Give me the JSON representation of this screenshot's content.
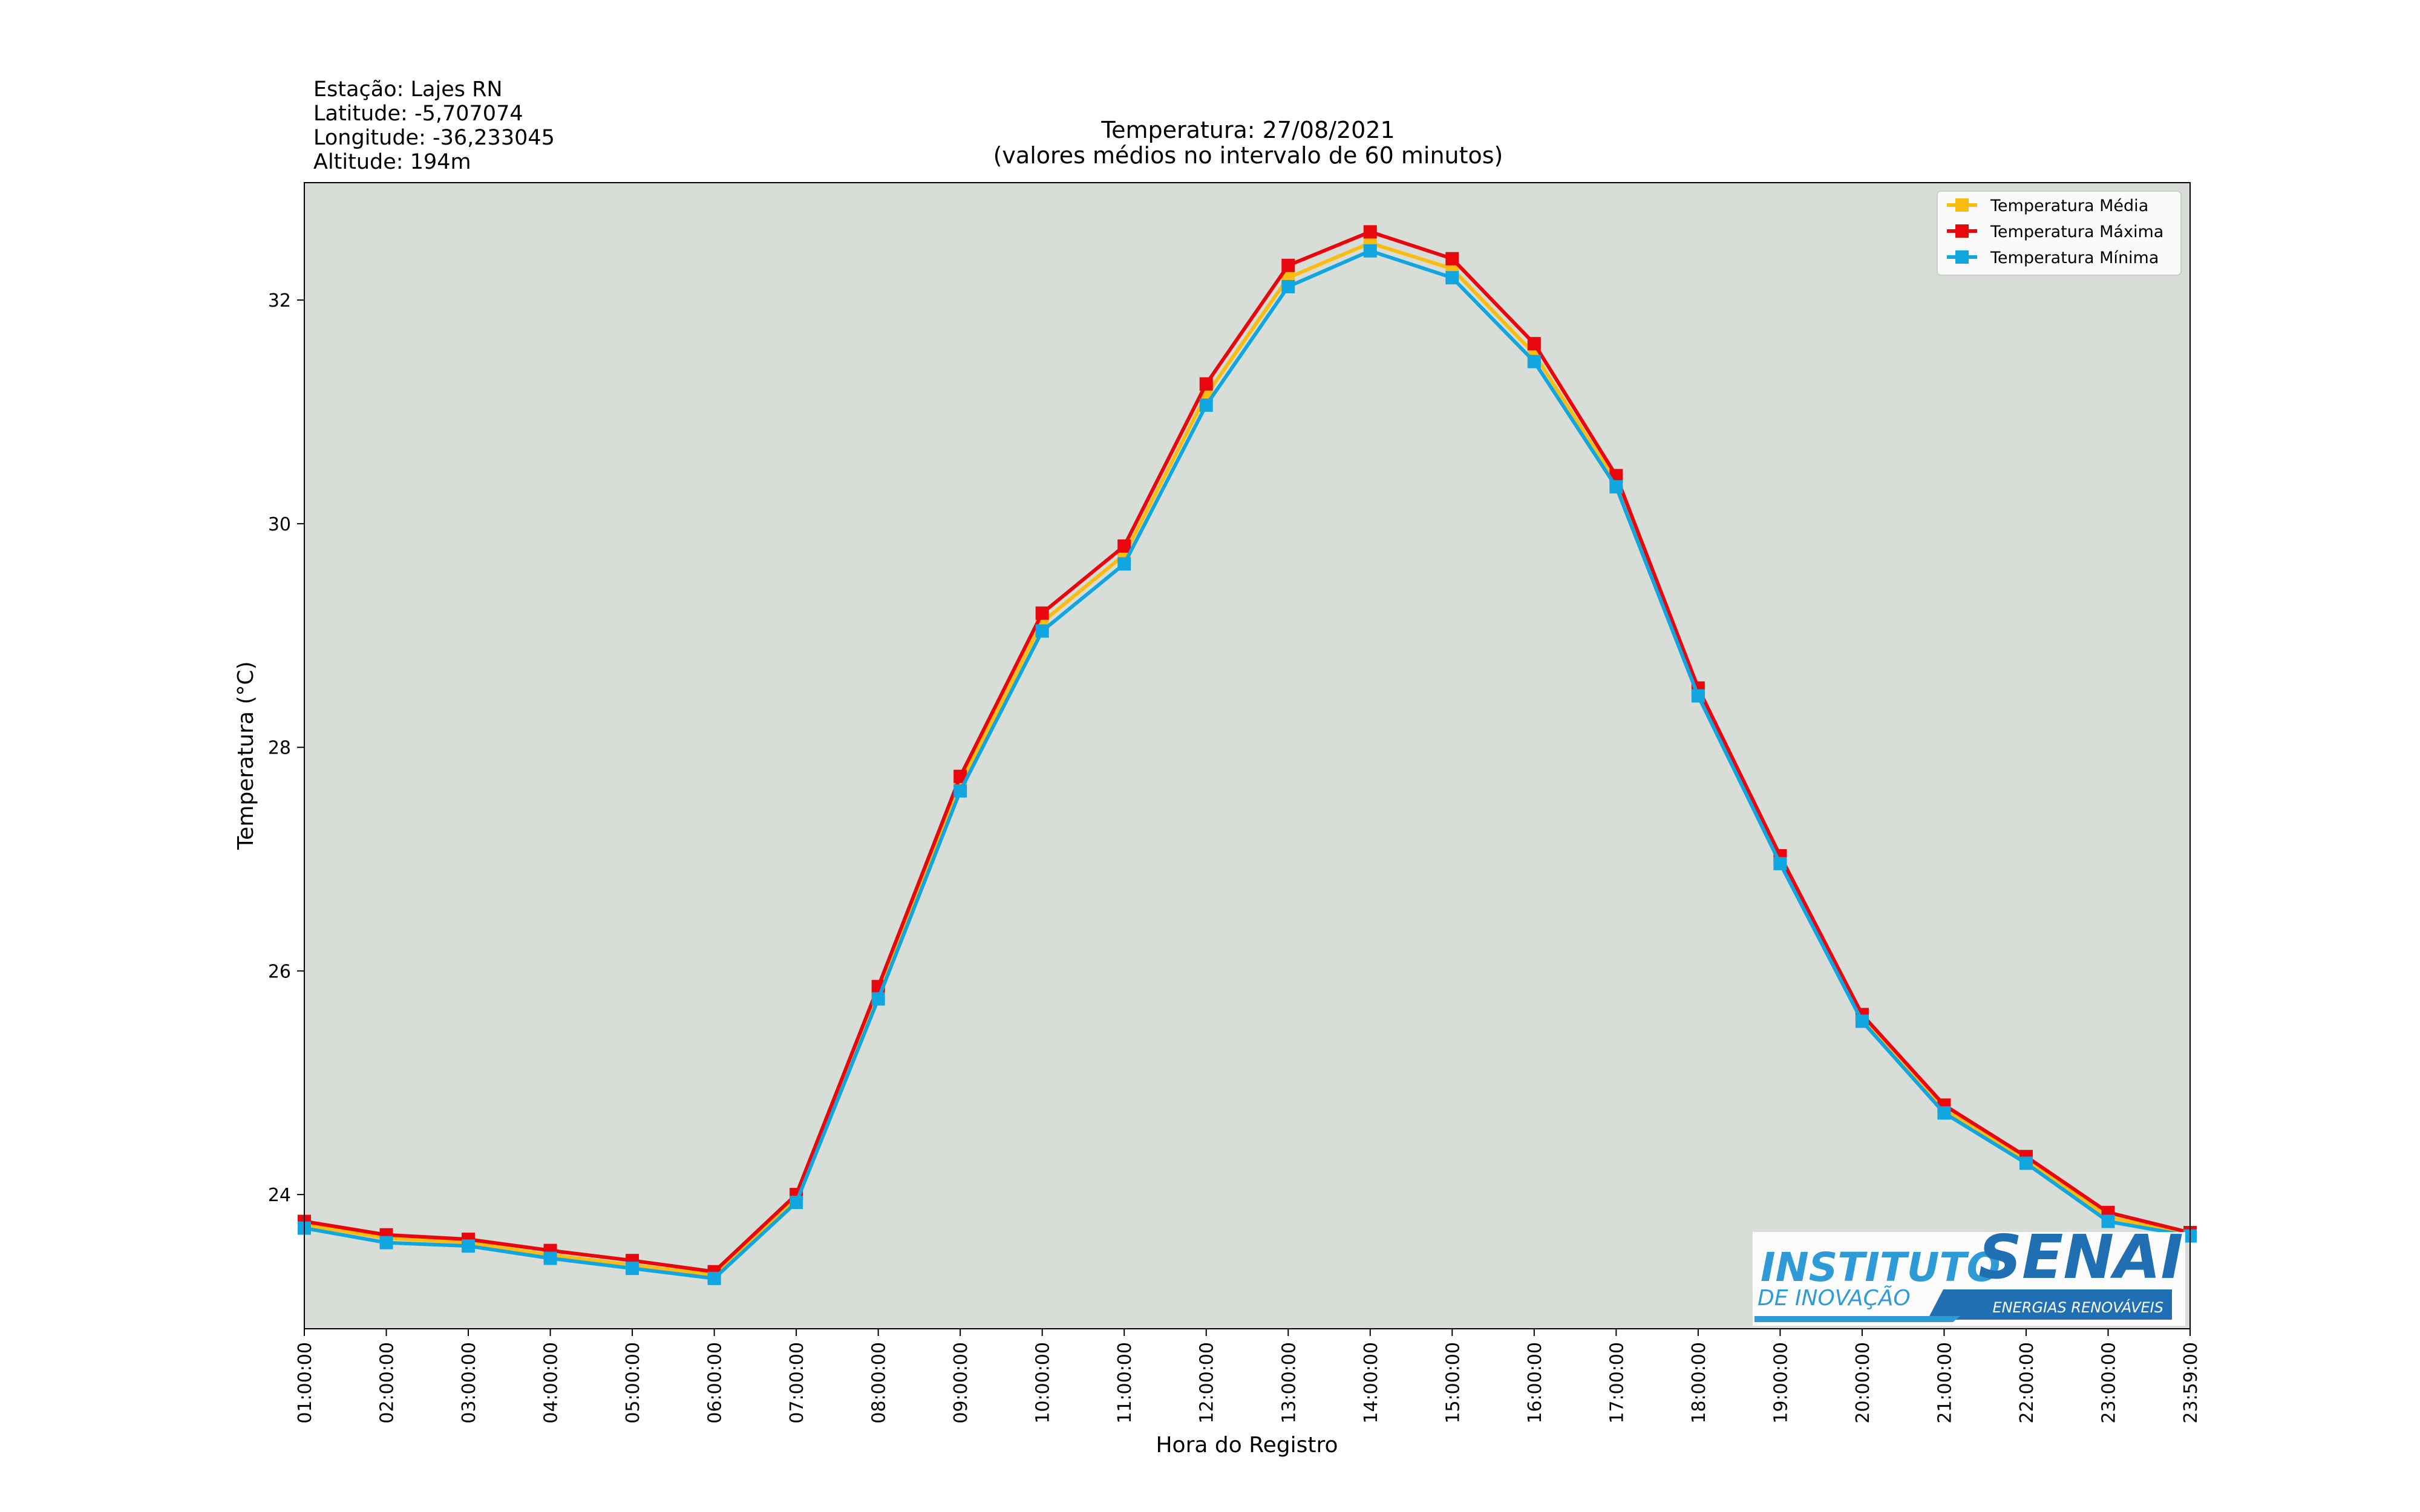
{
  "station": {
    "name": "Estação: Lajes RN",
    "latitude": "Latitude: -5,707074",
    "longitude": "Longitude: -36,233045",
    "altitude": "Altitude: 194m"
  },
  "logo": {
    "line1": "INSTITUTO",
    "line2": "SENAI",
    "line3": "DE INOVAÇÃO",
    "line4": "ENERGIAS RENOVÁVEIS"
  },
  "colors": {
    "background": "#d8ddd7",
    "media": "#fbbc12",
    "maxima": "#e8070d",
    "minima": "#12a6e0"
  },
  "chart_data": {
    "type": "line",
    "title": "Temperatura: 27/08/2021",
    "subtitle": "(valores médios no intervalo de 60 minutos)",
    "xlabel": "Hora do Registro",
    "ylabel": "Temperatura (°C)",
    "ylim": [
      22.8,
      33.05
    ],
    "yticks": [
      24,
      26,
      28,
      30,
      32
    ],
    "grid": false,
    "legend_position": "top-right",
    "categories": [
      "01:00:00",
      "02:00:00",
      "03:00:00",
      "04:00:00",
      "05:00:00",
      "06:00:00",
      "07:00:00",
      "08:00:00",
      "09:00:00",
      "10:00:00",
      "11:00:00",
      "12:00:00",
      "13:00:00",
      "14:00:00",
      "15:00:00",
      "16:00:00",
      "17:00:00",
      "18:00:00",
      "19:00:00",
      "20:00:00",
      "21:00:00",
      "22:00:00",
      "23:00:00",
      "23:59:00"
    ],
    "series": [
      {
        "name": "Temperatura Média",
        "color": "#fbbc12",
        "values": [
          23.73,
          23.61,
          23.57,
          23.46,
          23.37,
          23.28,
          23.97,
          25.8,
          27.67,
          29.12,
          29.72,
          31.15,
          32.2,
          32.51,
          32.28,
          31.52,
          30.37,
          28.49,
          26.99,
          25.57,
          24.76,
          24.31,
          23.8,
          23.64
        ]
      },
      {
        "name": "Temperatura Máxima",
        "color": "#e8070d",
        "values": [
          23.76,
          23.64,
          23.6,
          23.5,
          23.41,
          23.31,
          24.0,
          25.86,
          27.74,
          29.2,
          29.8,
          31.25,
          32.31,
          32.61,
          32.37,
          31.61,
          30.43,
          28.53,
          27.03,
          25.61,
          24.8,
          24.34,
          23.84,
          23.66
        ]
      },
      {
        "name": "Temperatura Mínima",
        "color": "#12a6e0",
        "values": [
          23.7,
          23.57,
          23.54,
          23.43,
          23.34,
          23.25,
          23.93,
          25.75,
          27.61,
          29.04,
          29.64,
          31.06,
          32.12,
          32.44,
          32.2,
          31.45,
          30.33,
          28.46,
          26.96,
          25.55,
          24.73,
          24.28,
          23.76,
          23.63
        ]
      }
    ]
  }
}
